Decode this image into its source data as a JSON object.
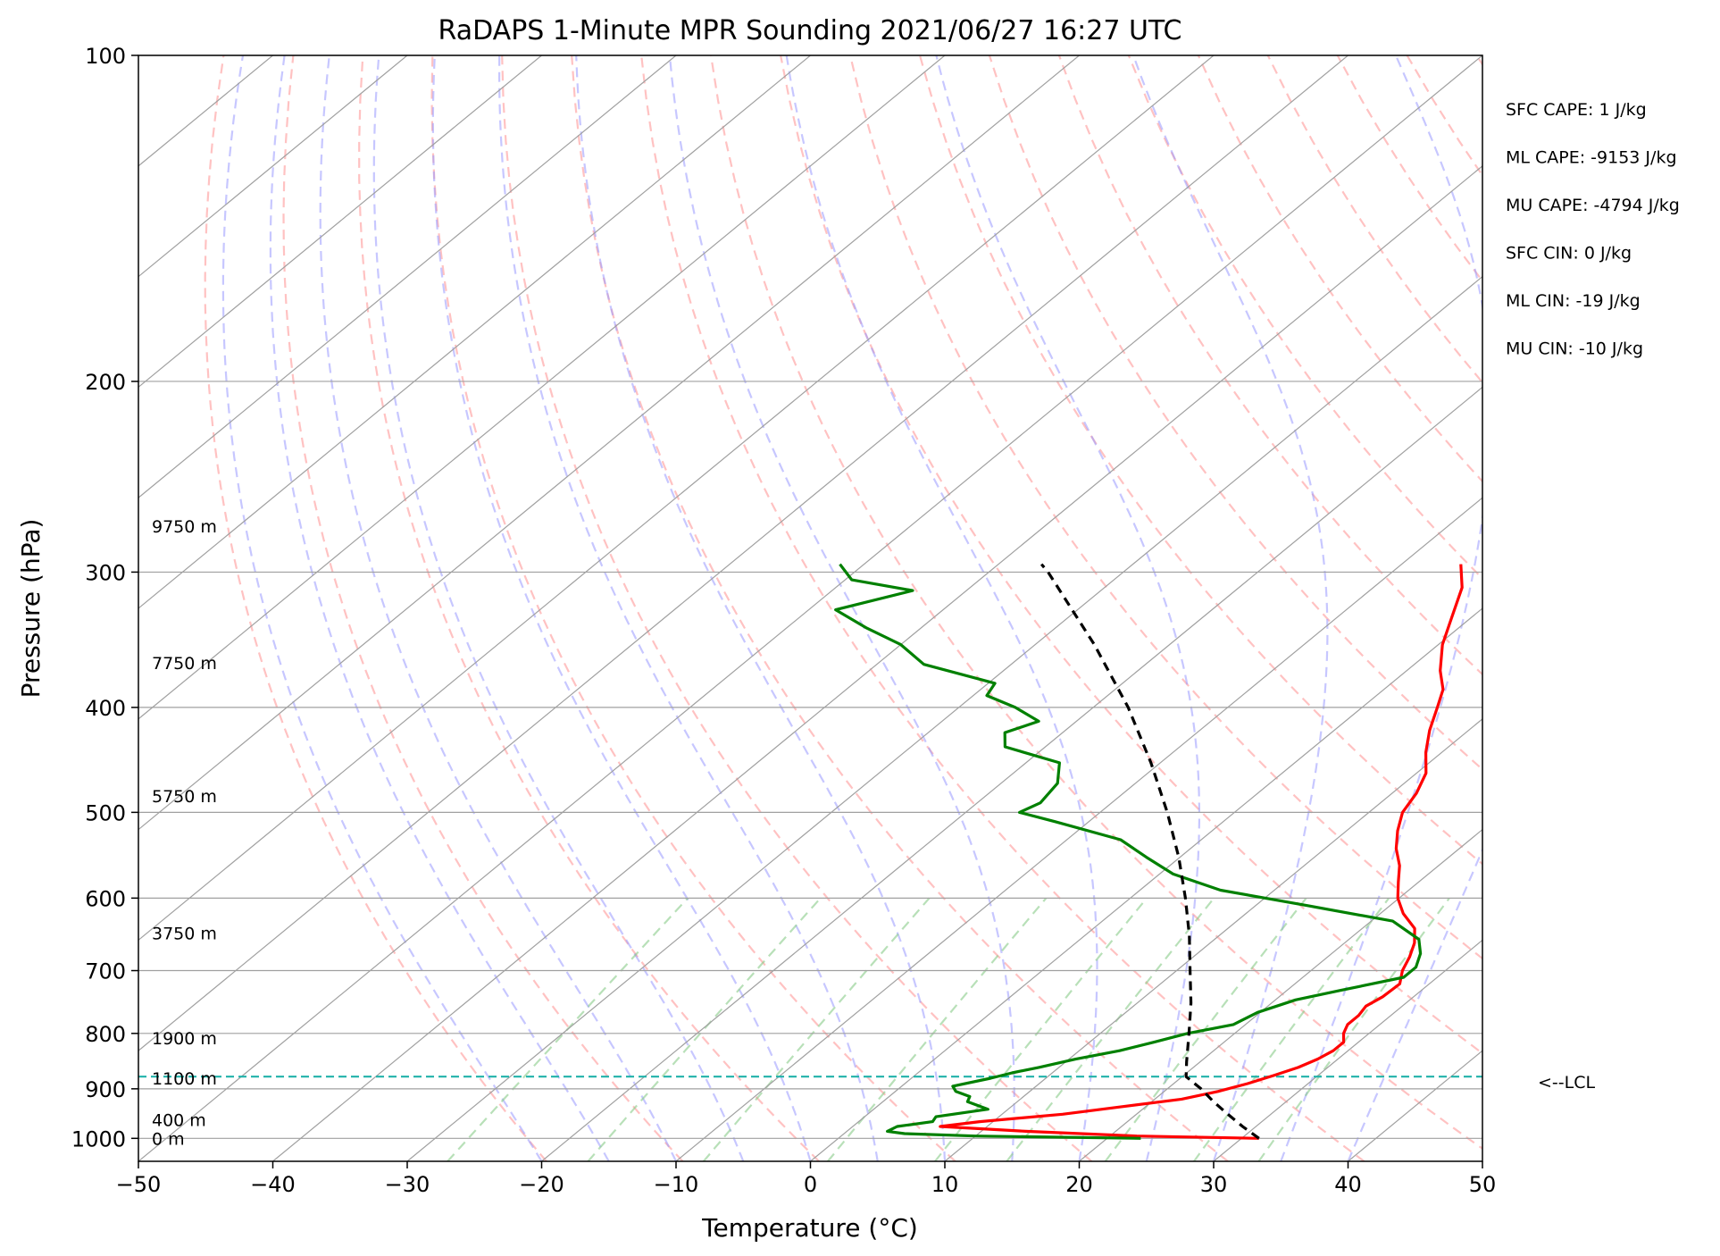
{
  "chart_data": {
    "type": "line",
    "title": "RaDAPS 1-Minute MPR Sounding 2021/06/27 16:27 UTC",
    "xlabel": "Temperature (°C)",
    "ylabel": "Pressure (hPa)",
    "xlim": [
      -50,
      50
    ],
    "ylim": [
      1050,
      100
    ],
    "y_scale": "log",
    "skew": "skew-T",
    "grid": true,
    "x_ticks": [
      -50,
      -40,
      -30,
      -20,
      -10,
      0,
      10,
      20,
      30,
      40,
      50
    ],
    "x_tick_labels": [
      "−50",
      "−40",
      "−30",
      "−20",
      "−10",
      "0",
      "10",
      "20",
      "30",
      "40",
      "50"
    ],
    "y_ticks": [
      100,
      200,
      300,
      400,
      500,
      600,
      700,
      800,
      900,
      1000
    ],
    "y_tick_labels": [
      "100",
      "200",
      "300",
      "400",
      "500",
      "600",
      "700",
      "800",
      "900",
      "1000"
    ],
    "series": [
      {
        "color": "#ff0000",
        "points": [
          [
            1000,
            31.3
          ],
          [
            995,
            22.0
          ],
          [
            985,
            13.3
          ],
          [
            975,
            6.5
          ],
          [
            965,
            9.0
          ],
          [
            950,
            14.5
          ],
          [
            935,
            18.2
          ],
          [
            920,
            22.0
          ],
          [
            905,
            24.0
          ],
          [
            890,
            25.5
          ],
          [
            875,
            26.7
          ],
          [
            860,
            27.8
          ],
          [
            845,
            28.5
          ],
          [
            830,
            28.9
          ],
          [
            815,
            28.9
          ],
          [
            800,
            28.1
          ],
          [
            785,
            27.6
          ],
          [
            770,
            27.6
          ],
          [
            755,
            27.3
          ],
          [
            740,
            27.7
          ],
          [
            720,
            27.8
          ],
          [
            700,
            26.8
          ],
          [
            680,
            26.1
          ],
          [
            660,
            25.2
          ],
          [
            640,
            23.9
          ],
          [
            620,
            21.7
          ],
          [
            600,
            19.9
          ],
          [
            580,
            18.5
          ],
          [
            560,
            17.1
          ],
          [
            540,
            15.3
          ],
          [
            520,
            13.8
          ],
          [
            500,
            12.5
          ],
          [
            480,
            11.8
          ],
          [
            460,
            10.7
          ],
          [
            440,
            8.8
          ],
          [
            420,
            7.1
          ],
          [
            400,
            5.6
          ],
          [
            385,
            4.4
          ],
          [
            370,
            2.5
          ],
          [
            350,
            0.3
          ],
          [
            330,
            -1.5
          ],
          [
            310,
            -3.4
          ],
          [
            295,
            -5.6
          ]
        ]
      },
      {
        "color": "#008000",
        "points": [
          [
            1000,
            22.5
          ],
          [
            995,
            10.0
          ],
          [
            990,
            4.5
          ],
          [
            985,
            3.0
          ],
          [
            975,
            3.3
          ],
          [
            965,
            5.5
          ],
          [
            955,
            5.3
          ],
          [
            940,
            8.5
          ],
          [
            925,
            6.3
          ],
          [
            915,
            6.0
          ],
          [
            905,
            4.5
          ],
          [
            895,
            3.8
          ],
          [
            880,
            5.9
          ],
          [
            870,
            7.0
          ],
          [
            860,
            8.5
          ],
          [
            845,
            10.5
          ],
          [
            830,
            13.0
          ],
          [
            815,
            14.8
          ],
          [
            800,
            16.5
          ],
          [
            785,
            19.1
          ],
          [
            765,
            19.8
          ],
          [
            745,
            21.5
          ],
          [
            730,
            24.0
          ],
          [
            710,
            27.5
          ],
          [
            695,
            27.5
          ],
          [
            675,
            26.6
          ],
          [
            655,
            25.2
          ],
          [
            630,
            21.6
          ],
          [
            610,
            14.0
          ],
          [
            590,
            6.0
          ],
          [
            570,
            1.0
          ],
          [
            550,
            -2.5
          ],
          [
            530,
            -6.0
          ],
          [
            510,
            -12.5
          ],
          [
            500,
            -16.0
          ],
          [
            490,
            -15.3
          ],
          [
            470,
            -15.8
          ],
          [
            450,
            -17.5
          ],
          [
            435,
            -23.0
          ],
          [
            422,
            -24.3
          ],
          [
            412,
            -22.8
          ],
          [
            400,
            -25.8
          ],
          [
            390,
            -29.0
          ],
          [
            380,
            -29.5
          ],
          [
            365,
            -36.5
          ],
          [
            350,
            -40.0
          ],
          [
            338,
            -44.0
          ],
          [
            325,
            -48.0
          ],
          [
            312,
            -44.0
          ],
          [
            305,
            -49.5
          ],
          [
            295,
            -51.8
          ]
        ]
      },
      {
        "color": "#000000",
        "dashed": true,
        "points": [
          [
            1000,
            31.3
          ],
          [
            975,
            29.0
          ],
          [
            950,
            26.8
          ],
          [
            925,
            24.6
          ],
          [
            900,
            22.5
          ],
          [
            877,
            20.3
          ],
          [
            850,
            19.0
          ],
          [
            800,
            16.6
          ],
          [
            750,
            14.0
          ],
          [
            700,
            11.0
          ],
          [
            650,
            7.8
          ],
          [
            600,
            4.1
          ],
          [
            550,
            -0.1
          ],
          [
            500,
            -5.0
          ],
          [
            450,
            -10.7
          ],
          [
            400,
            -17.4
          ],
          [
            350,
            -25.6
          ],
          [
            300,
            -35.6
          ],
          [
            295,
            -36.8
          ]
        ]
      }
    ],
    "lcl_pressure": 877,
    "lcl_label": "<--LCL",
    "height_labels": [
      {
        "text": "9750 m",
        "p": 272
      },
      {
        "text": "7750 m",
        "p": 364
      },
      {
        "text": "5750 m",
        "p": 483
      },
      {
        "text": "3750 m",
        "p": 646
      },
      {
        "text": "1900 m",
        "p": 808
      },
      {
        "text": "1100 m",
        "p": 880
      },
      {
        "text": "400 m",
        "p": 961
      },
      {
        "text": "0 m",
        "p": 1000
      }
    ],
    "stats": [
      "SFC CAPE: 1 J/kg",
      "ML CAPE: -9153 J/kg",
      "MU CAPE: -4794 J/kg",
      "SFC CIN: 0 J/kg",
      "ML CIN: -19 J/kg",
      "MU CIN: -10 J/kg"
    ],
    "colors": {
      "isotherm": "#a0a0a0",
      "dry_adiabat": "#ff9999",
      "moist_adiabat": "#9999ff",
      "mixing_ratio": "#88cc88",
      "lcl_line": "#20b2aa"
    }
  }
}
